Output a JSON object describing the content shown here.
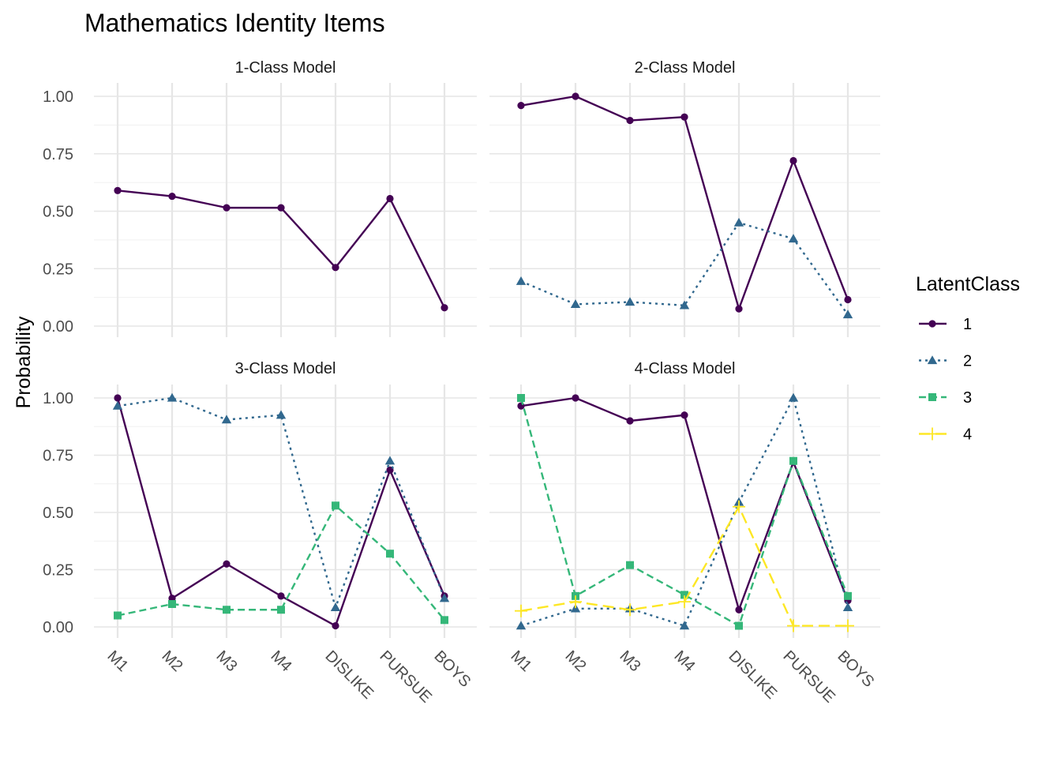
{
  "chart_data": {
    "type": "line",
    "title": "Mathematics Identity Items",
    "ylabel": "Probability",
    "xlabel": "",
    "categories": [
      "M1",
      "M2",
      "M3",
      "M4",
      "DISLIKE",
      "PURSUE",
      "BOYS"
    ],
    "yticks": [
      "0.00",
      "0.25",
      "0.50",
      "0.75",
      "1.00"
    ],
    "ylim": [
      0,
      1
    ],
    "grid": true,
    "legend": {
      "title": "LatentClass",
      "position": "right",
      "items": [
        {
          "label": "1",
          "color": "#440154",
          "dash": "solid",
          "shape": "circle"
        },
        {
          "label": "2",
          "color": "#31688E",
          "dash": "dotted",
          "shape": "triangle"
        },
        {
          "label": "3",
          "color": "#35B779",
          "dash": "dashed",
          "shape": "square"
        },
        {
          "label": "4",
          "color": "#FDE725",
          "dash": "longdash",
          "shape": "plus"
        }
      ]
    },
    "panels": [
      {
        "title": "1-Class Model",
        "series": [
          {
            "name": "1",
            "values": [
              0.59,
              0.565,
              0.515,
              0.515,
              0.255,
              0.555,
              0.08
            ]
          }
        ]
      },
      {
        "title": "2-Class Model",
        "series": [
          {
            "name": "1",
            "values": [
              0.96,
              1.0,
              0.895,
              0.91,
              0.075,
              0.72,
              0.115
            ]
          },
          {
            "name": "2",
            "values": [
              0.195,
              0.095,
              0.105,
              0.09,
              0.45,
              0.38,
              0.05
            ]
          }
        ]
      },
      {
        "title": "3-Class Model",
        "series": [
          {
            "name": "1",
            "values": [
              1.0,
              0.125,
              0.275,
              0.135,
              0.005,
              0.685,
              0.135
            ]
          },
          {
            "name": "2",
            "values": [
              0.965,
              1.0,
              0.905,
              0.925,
              0.085,
              0.725,
              0.125
            ]
          },
          {
            "name": "3",
            "values": [
              0.05,
              0.1,
              0.075,
              0.075,
              0.53,
              0.32,
              0.03
            ]
          }
        ]
      },
      {
        "title": "4-Class Model",
        "series": [
          {
            "name": "1",
            "values": [
              0.965,
              1.0,
              0.9,
              0.925,
              0.075,
              0.72,
              0.115
            ]
          },
          {
            "name": "2",
            "values": [
              0.005,
              0.08,
              0.08,
              0.005,
              0.545,
              1.0,
              0.085
            ]
          },
          {
            "name": "3",
            "values": [
              1.0,
              0.135,
              0.27,
              0.14,
              0.005,
              0.725,
              0.135
            ]
          },
          {
            "name": "4",
            "values": [
              0.07,
              0.11,
              0.075,
              0.11,
              0.525,
              0.005,
              0.005
            ]
          }
        ]
      }
    ]
  }
}
